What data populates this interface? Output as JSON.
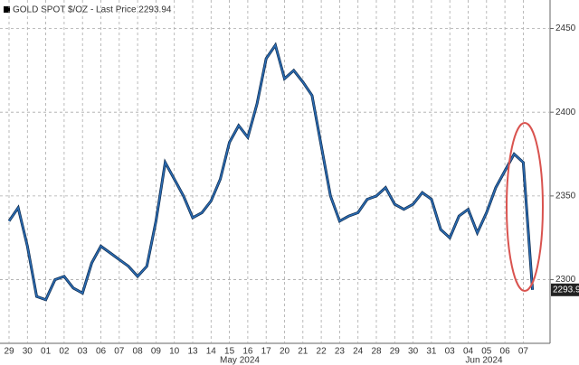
{
  "chart_data": {
    "type": "line",
    "title": "GOLD SPOT $/OZ - Last Price 2293.94",
    "categories": [
      "29",
      null,
      "30",
      null,
      "01",
      null,
      "02",
      null,
      "03",
      null,
      "06",
      null,
      "07",
      null,
      "08",
      null,
      "09",
      null,
      "10",
      null,
      "13",
      null,
      "14",
      null,
      "15",
      null,
      "16",
      null,
      "17",
      null,
      "20",
      null,
      "21",
      null,
      "22",
      null,
      "23",
      null,
      "24",
      null,
      "28",
      null,
      "29",
      null,
      "30",
      null,
      "31",
      null,
      "03",
      null,
      "04",
      null,
      "05",
      null,
      "06",
      null,
      "07",
      null
    ],
    "month_labels": [
      "May 2024",
      "Jun 2024"
    ],
    "series": [
      {
        "name": "GOLD SPOT $/OZ",
        "color": "#2b6cb3",
        "values": [
          2335,
          2343,
          2320,
          2290,
          2288,
          2300,
          2302,
          2295,
          2292,
          2310,
          2320,
          2316,
          2312,
          2308,
          2302,
          2308,
          2335,
          2370,
          2360,
          2350,
          2337,
          2340,
          2347,
          2360,
          2382,
          2392,
          2385,
          2405,
          2432,
          2440,
          2420,
          2425,
          2418,
          2410,
          2380,
          2350,
          2335,
          2338,
          2340,
          2348,
          2350,
          2355,
          2345,
          2342,
          2345,
          2352,
          2348,
          2330,
          2325,
          2338,
          2342,
          2328,
          2340,
          2355,
          2365,
          2375,
          2370,
          2293.94
        ]
      }
    ],
    "last_price": 2293.94,
    "ylim": [
      2262,
      2467
    ],
    "yticks": [
      2300,
      2350,
      2400,
      2450
    ],
    "grid": true
  }
}
